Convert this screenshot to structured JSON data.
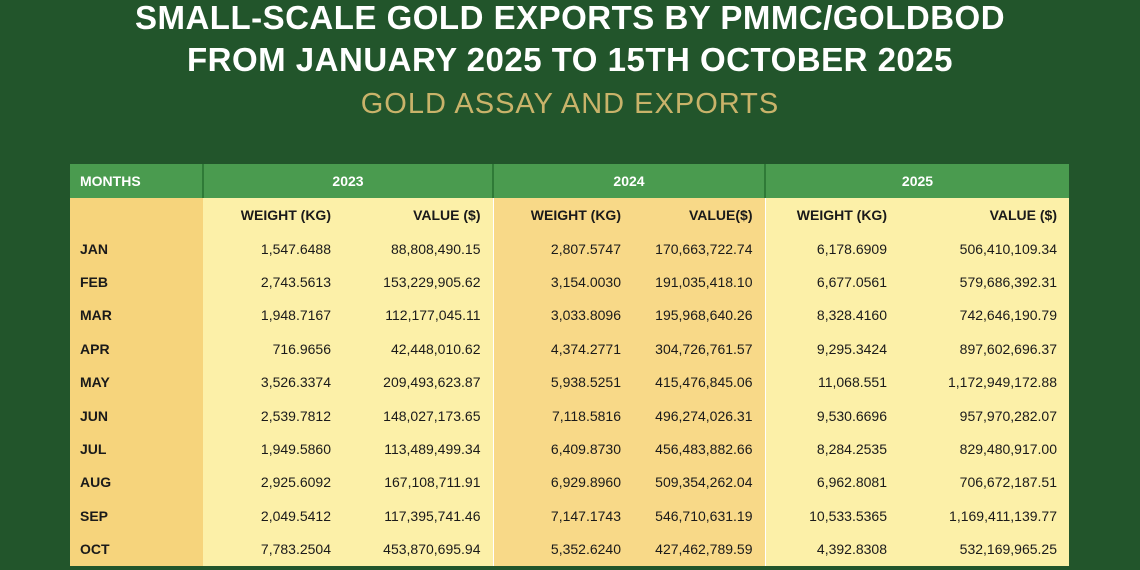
{
  "title_line1": "SMALL-SCALE GOLD EXPORTS BY PMMC/GOLDBOD",
  "title_line2": "FROM JANUARY 2025 TO 15TH OCTOBER 2025",
  "subtitle": "GOLD ASSAY AND EXPORTS",
  "table": {
    "months_header": "MONTHS",
    "years": [
      "2023",
      "2024",
      "2025"
    ],
    "subheaders": [
      "WEIGHT (KG)",
      "VALUE ($)",
      "WEIGHT (KG)",
      "VALUE($)",
      "WEIGHT (KG)",
      "VALUE ($)"
    ],
    "rows": [
      [
        "JAN",
        "1,547.6488",
        "88,808,490.15",
        "2,807.5747",
        "170,663,722.74",
        "6,178.6909",
        "506,410,109.34"
      ],
      [
        "FEB",
        "2,743.5613",
        "153,229,905.62",
        "3,154.0030",
        "191,035,418.10",
        "6,677.0561",
        "579,686,392.31"
      ],
      [
        "MAR",
        "1,948.7167",
        "112,177,045.11",
        "3,033.8096",
        "195,968,640.26",
        "8,328.4160",
        "742,646,190.79"
      ],
      [
        "APR",
        "716.9656",
        "42,448,010.62",
        "4,374.2771",
        "304,726,761.57",
        "9,295.3424",
        "897,602,696.37"
      ],
      [
        "MAY",
        "3,526.3374",
        "209,493,623.87",
        "5,938.5251",
        "415,476,845.06",
        "11,068.551",
        "1,172,949,172.88"
      ],
      [
        "JUN",
        "2,539.7812",
        "148,027,173.65",
        "7,118.5816",
        "496,274,026.31",
        "9,530.6696",
        "957,970,282.07"
      ],
      [
        "JUL",
        "1,949.5860",
        "113,489,499.34",
        "6,409.8730",
        "456,483,882.66",
        "8,284.2535",
        "829,480,917.00"
      ],
      [
        "AUG",
        "2,925.6092",
        "167,108,711.91",
        "6,929.8960",
        "509,354,262.04",
        "6,962.8081",
        "706,672,187.51"
      ],
      [
        "SEP",
        "2,049.5412",
        "117,395,741.46",
        "7,147.1743",
        "546,710,631.19",
        "10,533.5365",
        "1,169,411,139.77"
      ],
      [
        "OCT",
        "7,783.2504",
        "453,870,695.94",
        "5,352.6240",
        "427,462,789.59",
        "4,392.8308",
        "532,169,965.25"
      ]
    ]
  },
  "colors": {
    "background": "#22552b",
    "header_green": "#4a9b4f",
    "subtitle_gold": "#c9b36a",
    "month_col": "#f6d47c",
    "light_col": "#fcf0a8",
    "mid_col": "#f8d988"
  }
}
